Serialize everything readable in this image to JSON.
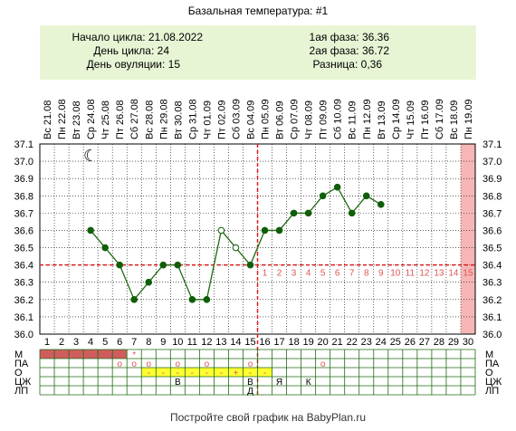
{
  "chart_data": {
    "type": "line",
    "title": "Базальная температура: #1",
    "info": {
      "cycle_start": "Начало цикла: 21.08.2022",
      "cycle_day": "День цикла: 24",
      "ovulation_day": "День овуляции: 15",
      "phase1": "1ая фаза: 36.36",
      "phase2": "2ая фаза: 36.72",
      "difference": "Разница: 0,36"
    },
    "dates": [
      "Вс 21.08",
      "Пн 22.08",
      "Вт 23.08",
      "Ср 24.08",
      "Чт 25.08",
      "Пт 26.08",
      "Сб 27.08",
      "Вс 28.08",
      "Пн 29.08",
      "Вт 30.08",
      "Ср 31.08",
      "Чт 01.09",
      "Пт 02.09",
      "Сб 03.09",
      "Вс 04.09",
      "Пн 05.09",
      "Вт 06.09",
      "Ср 07.09",
      "Чт 08.09",
      "Пт 09.09",
      "Сб 10.09",
      "Вс 11.09",
      "Пн 12.09",
      "Вт 13.09",
      "Ср 14.09",
      "Чт 15.09",
      "Пт 16.09",
      "Сб 17.09",
      "Вс 18.09",
      "Пн 19.09"
    ],
    "days": [
      1,
      2,
      3,
      4,
      5,
      6,
      7,
      8,
      9,
      10,
      11,
      12,
      13,
      14,
      15,
      16,
      17,
      18,
      19,
      20,
      21,
      22,
      23,
      24,
      25,
      26,
      27,
      28,
      29,
      30
    ],
    "y_ticks": [
      "37.1",
      "37.0",
      "36.9",
      "36.8",
      "36.7",
      "36.6",
      "36.5",
      "36.4",
      "36.3",
      "36.2",
      "36.1",
      "36.0"
    ],
    "ylim": [
      36.0,
      37.1
    ],
    "series": [
      {
        "x": [
          4,
          5,
          6,
          7,
          8,
          9,
          10,
          11,
          12,
          13,
          14,
          15,
          16,
          17,
          18,
          19,
          20,
          21,
          22,
          23,
          24
        ],
        "values": [
          36.6,
          36.5,
          36.4,
          36.2,
          36.3,
          36.4,
          36.4,
          36.2,
          36.2,
          36.6,
          36.5,
          36.4,
          36.6,
          36.6,
          36.7,
          36.7,
          36.8,
          36.85,
          36.7,
          36.8,
          36.75
        ],
        "hollow_days": [
          13,
          14
        ]
      }
    ],
    "coverline": 36.4,
    "ovulation_day": 15,
    "luteal_labels": [
      "1",
      "2",
      "3",
      "4",
      "5",
      "6",
      "7",
      "8",
      "9",
      "10",
      "11",
      "12",
      "13",
      "14",
      "15"
    ],
    "highlight_day": 30,
    "moon_symbol": "☾",
    "rows": [
      {
        "label": "М",
        "bars": [
          1,
          2,
          3,
          4,
          5,
          6
        ],
        "marks": [
          {
            "day": 7,
            "text": "*"
          }
        ]
      },
      {
        "label": "ПА",
        "marks": [
          {
            "day": 6,
            "text": "o"
          },
          {
            "day": 7,
            "text": "o"
          },
          {
            "day": 8,
            "text": "o"
          },
          {
            "day": 10,
            "text": "o"
          },
          {
            "day": 12,
            "text": "o"
          },
          {
            "day": 15,
            "text": "o"
          },
          {
            "day": 20,
            "text": "o"
          }
        ]
      },
      {
        "label": "О",
        "yellow_from": 7,
        "yellow_to": 16,
        "marks": [
          {
            "day": 8,
            "text": "-"
          },
          {
            "day": 9,
            "text": "-"
          },
          {
            "day": 10,
            "text": "-"
          },
          {
            "day": 11,
            "text": "-"
          },
          {
            "day": 12,
            "text": "-"
          },
          {
            "day": 13,
            "text": "-"
          },
          {
            "day": 14,
            "text": "+"
          },
          {
            "day": 15,
            "text": "-"
          },
          {
            "day": 16,
            "text": "-"
          }
        ]
      },
      {
        "label": "ЦЖ",
        "marks": [
          {
            "day": 10,
            "text": "В"
          },
          {
            "day": 15,
            "text": "В"
          },
          {
            "day": 17,
            "text": "Я"
          },
          {
            "day": 19,
            "text": "К"
          }
        ]
      },
      {
        "label": "ЛП",
        "marks": [
          {
            "day": 15,
            "text": "Д"
          }
        ]
      }
    ],
    "footer": "Постройте свой график на BabyPlan.ru",
    "colors": {
      "line": "#1f6a12",
      "marker": "#0f5e08",
      "coverline": "#e11a1a",
      "grid": "#000000",
      "info_bg": "#e8f5d5",
      "highlight": "#f7b6b6",
      "menses": "#cf5d5d",
      "ovulation_row": "#ffff33",
      "mark_red": "#e05555",
      "luteal_label": "#dd5555"
    }
  }
}
